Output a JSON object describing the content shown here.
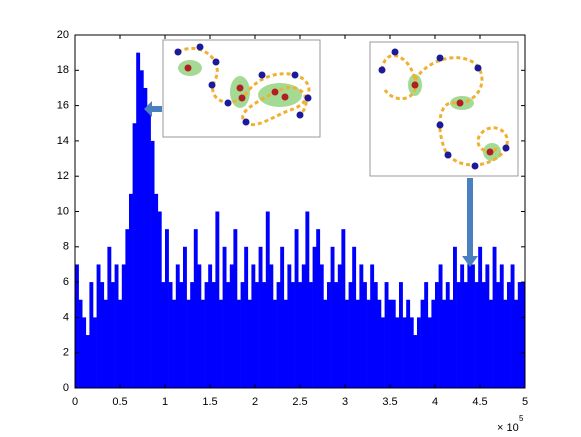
{
  "chart_data": {
    "type": "histogram",
    "bins": [
      0,
      0.04,
      0.08,
      0.12,
      0.16,
      0.2,
      0.24,
      0.28,
      0.32,
      0.36,
      0.4,
      0.44,
      0.48,
      0.52,
      0.56,
      0.6,
      0.64,
      0.68,
      0.72,
      0.76,
      0.8,
      0.84,
      0.88,
      0.92,
      0.96,
      1,
      1.04,
      1.08,
      1.12,
      1.16,
      1.2,
      1.24,
      1.28,
      1.32,
      1.36,
      1.4,
      1.44,
      1.48,
      1.52,
      1.56,
      1.6,
      1.64,
      1.68,
      1.72,
      1.76,
      1.8,
      1.84,
      1.88,
      1.92,
      1.96,
      2,
      2.04,
      2.08,
      2.12,
      2.16,
      2.2,
      2.24,
      2.28,
      2.32,
      2.36,
      2.4,
      2.44,
      2.48,
      2.52,
      2.56,
      2.6,
      2.64,
      2.68,
      2.72,
      2.76,
      2.8,
      2.84,
      2.88,
      2.92,
      2.96,
      3,
      3.04,
      3.08,
      3.12,
      3.16,
      3.2,
      3.24,
      3.28,
      3.32,
      3.36,
      3.4,
      3.44,
      3.48,
      3.52,
      3.56,
      3.6,
      3.64,
      3.68,
      3.72,
      3.76,
      3.8,
      3.84,
      3.88,
      3.92,
      3.96,
      4,
      4.04,
      4.08,
      4.12,
      4.16,
      4.2,
      4.24,
      4.28,
      4.32,
      4.36,
      4.4,
      4.44,
      4.48,
      4.52,
      4.56,
      4.6,
      4.64,
      4.68,
      4.72,
      4.76,
      4.8,
      4.84,
      4.88,
      4.92,
      4.96,
      5
    ],
    "counts": [
      7,
      5,
      4,
      3,
      6,
      4,
      7,
      6,
      5,
      8,
      6,
      7,
      5,
      7,
      9,
      11,
      15,
      19,
      18,
      17,
      16,
      14,
      11,
      10,
      6,
      9,
      6,
      5,
      7,
      6,
      8,
      5,
      6,
      9,
      7,
      5,
      6,
      7,
      6,
      10,
      5,
      8,
      6,
      7,
      9,
      5,
      6,
      8,
      5,
      7,
      6,
      8,
      6,
      10,
      7,
      5,
      6,
      8,
      5,
      7,
      6,
      9,
      6,
      7,
      10,
      6,
      8,
      9,
      7,
      5,
      6,
      8,
      6,
      7,
      9,
      5,
      6,
      8,
      5,
      7,
      6,
      5,
      7,
      6,
      5,
      4,
      6,
      5,
      5,
      4,
      6,
      4,
      5,
      4,
      3,
      4,
      5,
      6,
      4,
      5,
      6,
      7,
      5,
      6,
      5,
      8,
      6,
      7,
      6,
      9,
      7,
      6,
      8,
      6,
      7,
      5,
      8,
      6,
      7,
      5,
      6,
      7,
      5,
      6,
      6
    ],
    "color": "#0000ff",
    "xlim": [
      0,
      5
    ],
    "xticks": [
      0,
      0.5,
      1,
      1.5,
      2,
      2.5,
      3,
      3.5,
      4,
      4.5,
      5
    ],
    "ylim": [
      0,
      20
    ],
    "yticks": [
      0,
      2,
      4,
      6,
      8,
      10,
      12,
      14,
      16,
      18,
      20
    ],
    "x_scale_label": "× 10",
    "x_scale_exponent": "5"
  }
}
